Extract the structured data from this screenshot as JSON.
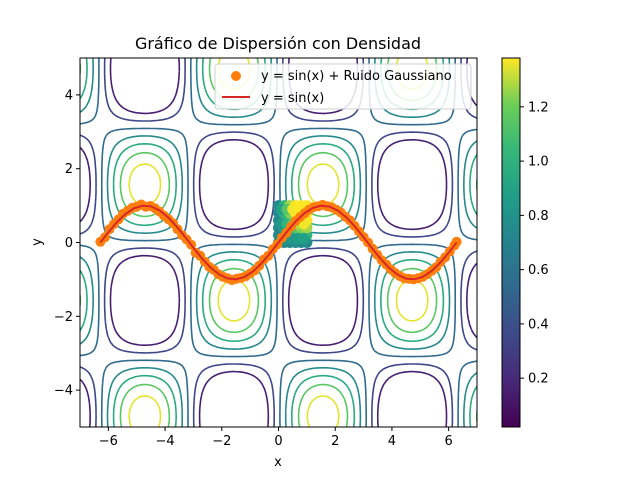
{
  "chart_data": {
    "type": "scatter",
    "title": "Gráfico de Dispersión con Densidad",
    "xlabel": "x",
    "ylabel": "y",
    "xlim": [
      -7,
      7
    ],
    "ylim": [
      -5,
      5
    ],
    "xticks": [
      -6,
      -4,
      -2,
      0,
      2,
      4,
      6
    ],
    "yticks": [
      -4,
      -2,
      0,
      2,
      4
    ],
    "grid": false,
    "legend_position": "upper-right",
    "contour": {
      "function": "sin(x)*sin(y) + 0.5",
      "levels": [
        0.15,
        0.35,
        0.55,
        0.75,
        0.95,
        1.15,
        1.35
      ],
      "colormap": "viridis",
      "note": "contour lines of density, colored by level"
    },
    "colorbar": {
      "range": [
        0.02,
        1.38
      ],
      "ticks": [
        0.2,
        0.4,
        0.6,
        0.8,
        1.0,
        1.2
      ],
      "tick_labels": [
        "0.2",
        "0.4",
        "0.6",
        "0.8",
        "1.0",
        "1.2"
      ]
    },
    "series": [
      {
        "name": "y = sin(x) + Ruido Gaussiano",
        "kind": "scatter",
        "color": "#ff7f0e",
        "x": [
          -6.28,
          -6.12,
          -5.96,
          -5.8,
          -5.64,
          -5.48,
          -5.32,
          -5.16,
          -5.0,
          -4.84,
          -4.68,
          -4.52,
          -4.36,
          -4.2,
          -4.04,
          -3.88,
          -3.72,
          -3.56,
          -3.4,
          -3.24,
          -3.08,
          -2.92,
          -2.76,
          -2.6,
          -2.44,
          -2.28,
          -2.12,
          -1.96,
          -1.8,
          -1.64,
          -1.48,
          -1.32,
          -1.16,
          -1.0,
          -0.84,
          -0.68,
          -0.52,
          -0.36,
          -0.2,
          -0.04,
          0.12,
          0.28,
          0.44,
          0.6,
          0.76,
          0.92,
          1.08,
          1.24,
          1.4,
          1.56,
          1.72,
          1.88,
          2.04,
          2.2,
          2.36,
          2.52,
          2.68,
          2.84,
          3.0,
          3.16,
          3.32,
          3.48,
          3.64,
          3.8,
          3.96,
          4.12,
          4.28,
          4.44,
          4.6,
          4.76,
          4.92,
          5.08,
          5.24,
          5.4,
          5.56,
          5.72,
          5.88,
          6.04,
          6.2,
          6.28
        ],
        "y": [
          0.02,
          0.14,
          0.36,
          0.5,
          0.63,
          0.78,
          0.86,
          0.94,
          0.97,
          1.03,
          0.97,
          0.99,
          0.93,
          0.84,
          0.73,
          0.63,
          0.52,
          0.36,
          0.2,
          0.08,
          -0.06,
          -0.28,
          -0.36,
          -0.52,
          -0.66,
          -0.74,
          -0.86,
          -0.93,
          -0.97,
          -1.02,
          -0.98,
          -0.96,
          -0.92,
          -0.84,
          -0.76,
          -0.63,
          -0.46,
          -0.36,
          -0.18,
          -0.05,
          0.13,
          0.26,
          0.43,
          0.58,
          0.69,
          0.79,
          0.89,
          0.96,
          0.98,
          1.02,
          0.98,
          0.95,
          0.89,
          0.81,
          0.7,
          0.6,
          0.45,
          0.3,
          0.15,
          0.0,
          -0.17,
          -0.33,
          -0.48,
          -0.6,
          -0.73,
          -0.83,
          -0.91,
          -0.97,
          -0.98,
          -1.0,
          -0.97,
          -0.93,
          -0.86,
          -0.77,
          -0.67,
          -0.52,
          -0.4,
          -0.24,
          -0.08,
          0.02
        ]
      },
      {
        "name": "y = sin(x)",
        "kind": "line",
        "color": "#d62728",
        "x": [
          -6.2832,
          -6.0,
          -5.7,
          -5.4,
          -5.1,
          -4.8,
          -4.5,
          -4.2,
          -3.9,
          -3.6,
          -3.3,
          -3.0,
          -2.7,
          -2.4,
          -2.1,
          -1.8,
          -1.5,
          -1.2,
          -0.9,
          -0.6,
          -0.3,
          0.0,
          0.3,
          0.6,
          0.9,
          1.2,
          1.5,
          1.8,
          2.1,
          2.4,
          2.7,
          3.0,
          3.3,
          3.6,
          3.9,
          4.2,
          4.5,
          4.8,
          5.1,
          5.4,
          5.7,
          6.0,
          6.2832
        ],
        "y": [
          0.0,
          0.279,
          0.551,
          0.773,
          0.926,
          0.996,
          0.978,
          0.872,
          0.688,
          0.443,
          0.158,
          -0.141,
          -0.427,
          -0.675,
          -0.863,
          -0.974,
          -0.997,
          -0.932,
          -0.783,
          -0.565,
          -0.296,
          0.0,
          0.296,
          0.565,
          0.783,
          0.932,
          0.997,
          0.974,
          0.863,
          0.675,
          0.427,
          0.141,
          -0.158,
          -0.443,
          -0.688,
          -0.872,
          -0.978,
          -0.996,
          -0.926,
          -0.773,
          -0.551,
          -0.279,
          0.0
        ]
      },
      {
        "name": "",
        "kind": "scatter-density",
        "colormap": "viridis",
        "x_range": [
          -0.1,
          1.1
        ],
        "y_range": [
          -0.1,
          1.1
        ],
        "x": [
          0.0,
          0.2,
          0.4,
          0.6,
          0.8,
          1.0,
          0.0,
          0.2,
          0.4,
          0.6,
          0.8,
          1.0,
          0.0,
          0.2,
          0.4,
          0.6,
          0.8,
          1.0,
          0.0,
          0.2,
          0.4,
          0.6,
          0.8,
          1.0,
          0.0,
          0.2,
          0.4,
          0.6,
          0.8,
          1.0,
          0.0,
          0.2,
          0.4,
          0.6,
          0.8,
          1.0,
          0.1,
          0.3,
          0.5,
          0.7,
          0.9,
          0.1,
          0.3,
          0.5,
          0.7,
          0.9,
          0.1,
          0.3,
          0.5,
          0.7,
          0.9
        ],
        "y": [
          0.0,
          0.0,
          0.0,
          0.0,
          0.0,
          0.0,
          0.2,
          0.2,
          0.2,
          0.2,
          0.2,
          0.2,
          0.4,
          0.4,
          0.4,
          0.4,
          0.4,
          0.4,
          0.6,
          0.6,
          0.6,
          0.6,
          0.6,
          0.6,
          0.8,
          0.8,
          0.8,
          0.8,
          0.8,
          0.8,
          1.0,
          1.0,
          1.0,
          1.0,
          1.0,
          1.0,
          0.1,
          0.1,
          0.1,
          0.1,
          0.1,
          0.5,
          0.5,
          0.5,
          0.5,
          0.5,
          0.9,
          0.9,
          0.9,
          0.9,
          0.9
        ]
      }
    ]
  }
}
